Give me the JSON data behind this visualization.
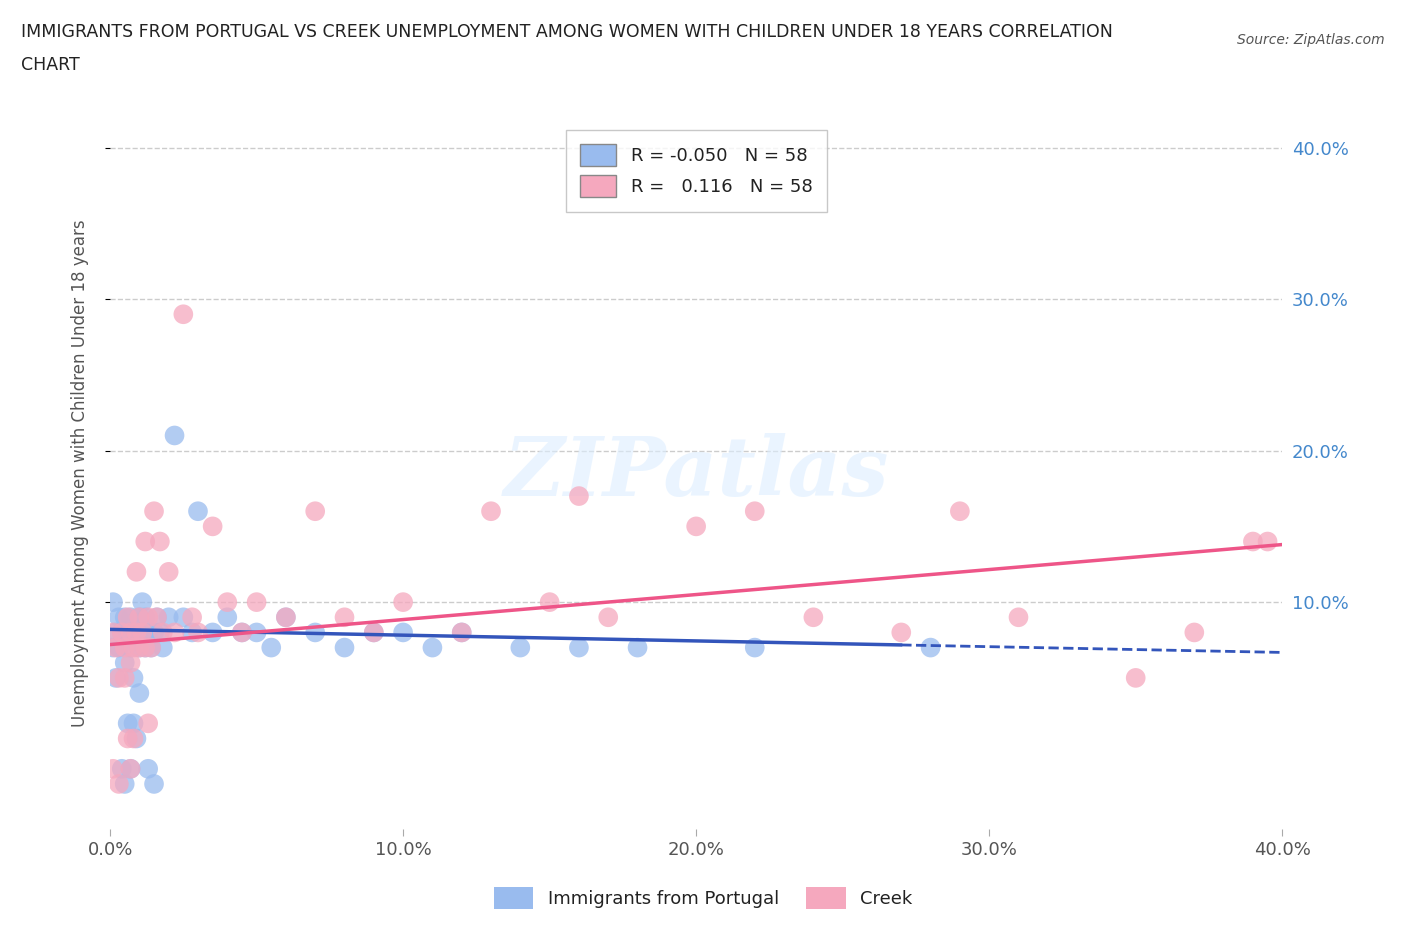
{
  "title_line1": "IMMIGRANTS FROM PORTUGAL VS CREEK UNEMPLOYMENT AMONG WOMEN WITH CHILDREN UNDER 18 YEARS CORRELATION",
  "title_line2": "CHART",
  "source": "Source: ZipAtlas.com",
  "ylabel": "Unemployment Among Women with Children Under 18 years",
  "xlim": [
    0.0,
    0.4
  ],
  "ylim": [
    -0.05,
    0.42
  ],
  "xtick_labels": [
    "0.0%",
    "10.0%",
    "20.0%",
    "30.0%",
    "40.0%"
  ],
  "xtick_vals": [
    0.0,
    0.1,
    0.2,
    0.3,
    0.4
  ],
  "right_ytick_labels": [
    "10.0%",
    "20.0%",
    "30.0%",
    "40.0%"
  ],
  "right_ytick_vals": [
    0.1,
    0.2,
    0.3,
    0.4
  ],
  "grid_color": "#cccccc",
  "background_color": "#ffffff",
  "blue_color": "#99bbee",
  "pink_color": "#f5a8be",
  "blue_line_color": "#3355bb",
  "pink_line_color": "#ee5588",
  "legend_label1": "Immigrants from Portugal",
  "legend_label2": "Creek",
  "blue_scatter_x": [
    0.001,
    0.001,
    0.002,
    0.002,
    0.003,
    0.003,
    0.004,
    0.004,
    0.005,
    0.005,
    0.005,
    0.006,
    0.006,
    0.007,
    0.007,
    0.007,
    0.008,
    0.008,
    0.008,
    0.009,
    0.009,
    0.01,
    0.01,
    0.01,
    0.011,
    0.011,
    0.012,
    0.012,
    0.013,
    0.013,
    0.014,
    0.015,
    0.015,
    0.016,
    0.017,
    0.018,
    0.02,
    0.022,
    0.025,
    0.028,
    0.03,
    0.035,
    0.04,
    0.045,
    0.05,
    0.055,
    0.06,
    0.07,
    0.08,
    0.09,
    0.1,
    0.11,
    0.12,
    0.14,
    0.16,
    0.18,
    0.22,
    0.28
  ],
  "blue_scatter_y": [
    0.07,
    0.1,
    0.08,
    0.05,
    0.09,
    0.07,
    0.08,
    -0.01,
    0.06,
    0.09,
    -0.02,
    0.08,
    0.02,
    0.09,
    0.07,
    -0.01,
    0.08,
    0.05,
    0.02,
    0.08,
    0.01,
    0.07,
    0.09,
    0.04,
    0.08,
    0.1,
    0.07,
    0.09,
    0.08,
    -0.01,
    0.07,
    0.08,
    -0.02,
    0.09,
    0.08,
    0.07,
    0.09,
    0.21,
    0.09,
    0.08,
    0.16,
    0.08,
    0.09,
    0.08,
    0.08,
    0.07,
    0.09,
    0.08,
    0.07,
    0.08,
    0.08,
    0.07,
    0.08,
    0.07,
    0.07,
    0.07,
    0.07,
    0.07
  ],
  "pink_scatter_x": [
    0.001,
    0.001,
    0.002,
    0.003,
    0.003,
    0.004,
    0.005,
    0.005,
    0.006,
    0.006,
    0.007,
    0.007,
    0.007,
    0.008,
    0.008,
    0.009,
    0.009,
    0.01,
    0.01,
    0.011,
    0.012,
    0.012,
    0.013,
    0.013,
    0.014,
    0.015,
    0.016,
    0.017,
    0.018,
    0.02,
    0.022,
    0.025,
    0.028,
    0.03,
    0.035,
    0.04,
    0.045,
    0.05,
    0.06,
    0.07,
    0.08,
    0.09,
    0.1,
    0.12,
    0.13,
    0.15,
    0.16,
    0.17,
    0.2,
    0.22,
    0.24,
    0.27,
    0.29,
    0.31,
    0.35,
    0.37,
    0.39,
    0.395
  ],
  "pink_scatter_y": [
    0.08,
    -0.01,
    0.07,
    0.05,
    -0.02,
    0.08,
    0.07,
    0.05,
    0.09,
    0.01,
    0.08,
    -0.01,
    0.06,
    0.07,
    0.01,
    0.08,
    0.12,
    0.07,
    0.09,
    0.08,
    0.14,
    0.07,
    0.09,
    0.02,
    0.07,
    0.16,
    0.09,
    0.14,
    0.08,
    0.12,
    0.08,
    0.29,
    0.09,
    0.08,
    0.15,
    0.1,
    0.08,
    0.1,
    0.09,
    0.16,
    0.09,
    0.08,
    0.1,
    0.08,
    0.16,
    0.1,
    0.17,
    0.09,
    0.15,
    0.16,
    0.09,
    0.08,
    0.16,
    0.09,
    0.05,
    0.08,
    0.14,
    0.14
  ],
  "blue_line_start": 0.0,
  "blue_line_solid_end": 0.27,
  "blue_line_end": 0.4,
  "pink_line_start": 0.0,
  "pink_line_end": 0.4,
  "blue_intercept": 0.082,
  "blue_slope": -0.038,
  "pink_intercept": 0.072,
  "pink_slope": 0.165
}
